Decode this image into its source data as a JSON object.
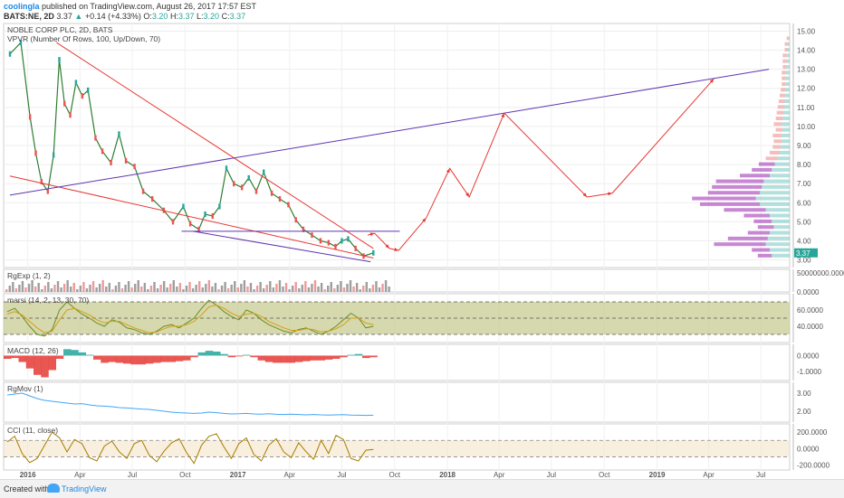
{
  "header": {
    "user": "coolingla",
    "published": "published on TradingView.com, August 26, 2017 17:57 EST",
    "symbol": "BATS:NE, 2D",
    "last": "3.37",
    "change": "+0.14 (+4.33%)",
    "open_label": "O:",
    "open": "3.20",
    "high_label": "H:",
    "high": "3.37",
    "low_label": "L:",
    "low": "3.20",
    "close_label": "C:",
    "close": "3.37"
  },
  "footer": {
    "created_with": "Created with",
    "brand": "TradingView"
  },
  "chart_data": {
    "type": "line",
    "x_ticks": [
      "2016",
      "Apr",
      "Jul",
      "Oct",
      "2017",
      "Apr",
      "Jul",
      "Oct",
      "2018",
      "Apr",
      "Jul",
      "Oct",
      "2019",
      "Apr",
      "Jul"
    ],
    "panes": [
      {
        "name": "price",
        "legend": [
          "NOBLE CORP PLC, 2D, BATS",
          "VPVR (Number Of Rows, 100, Up/Down, 70)"
        ],
        "y_ticks": [
          "15.00",
          "14.00",
          "13.00",
          "12.00",
          "11.00",
          "10.00",
          "9.00",
          "8.00",
          "7.00",
          "6.00",
          "5.00",
          "4.00",
          "3.00"
        ],
        "ylim": [
          2.6,
          15.4
        ],
        "last_value": "3.37",
        "series": [
          {
            "name": "NOBLE CORP PLC",
            "x": [
              "2015-12-01",
              "2015-12-20",
              "2016-01-05",
              "2016-01-15",
              "2016-01-25",
              "2016-02-05",
              "2016-02-15",
              "2016-02-25",
              "2016-03-05",
              "2016-03-15",
              "2016-03-25",
              "2016-04-05",
              "2016-04-15",
              "2016-04-28",
              "2016-05-10",
              "2016-05-25",
              "2016-06-08",
              "2016-06-20",
              "2016-07-05",
              "2016-07-20",
              "2016-08-05",
              "2016-08-25",
              "2016-09-10",
              "2016-09-28",
              "2016-10-10",
              "2016-10-25",
              "2016-11-05",
              "2016-11-18",
              "2016-11-30",
              "2016-12-12",
              "2016-12-25",
              "2017-01-08",
              "2017-01-20",
              "2017-02-02",
              "2017-02-15",
              "2017-03-01",
              "2017-03-15",
              "2017-03-30",
              "2017-04-12",
              "2017-04-25",
              "2017-05-10",
              "2017-05-25",
              "2017-06-08",
              "2017-06-20",
              "2017-07-01",
              "2017-07-12",
              "2017-07-25",
              "2017-08-08",
              "2017-08-25"
            ],
            "y": [
              13.8,
              14.4,
              10.5,
              8.6,
              7.1,
              6.6,
              8.5,
              13.5,
              11.2,
              10.6,
              12.3,
              11.6,
              11.9,
              9.4,
              8.7,
              8.1,
              9.6,
              8.2,
              7.9,
              6.6,
              6.2,
              5.6,
              5.0,
              5.8,
              4.9,
              4.6,
              5.4,
              5.3,
              5.8,
              7.8,
              7.0,
              6.8,
              7.3,
              6.6,
              7.6,
              6.5,
              6.2,
              5.9,
              5.1,
              4.6,
              4.3,
              4.0,
              3.9,
              3.7,
              4.0,
              4.1,
              3.6,
              3.2,
              3.37
            ]
          }
        ],
        "drawings": [
          {
            "type": "trendline",
            "color": "#e53935",
            "from": [
              "2016-02-20",
              14.4
            ],
            "to": [
              "2017-08-25",
              3.6
            ]
          },
          {
            "type": "trendline",
            "color": "#e53935",
            "from": [
              "2015-12-01",
              7.4
            ],
            "to": [
              "2017-08-25",
              3.1
            ]
          },
          {
            "type": "trendline",
            "color": "#5e35b1",
            "from": [
              "2015-12-01",
              6.4
            ],
            "to": [
              "2019-07-15",
              13.0
            ]
          },
          {
            "type": "trendline",
            "color": "#5e35b1",
            "from": [
              "2016-10-15",
              4.5
            ],
            "to": [
              "2017-08-20",
              2.9
            ]
          },
          {
            "type": "horizontal",
            "color": "#5e35b1",
            "from": [
              "2016-09-25",
              4.5
            ],
            "to": [
              "2017-10-10",
              4.5
            ]
          },
          {
            "type": "projection",
            "color": "#e53935",
            "x": [
              "2017-08-15",
              "2017-08-27",
              "2017-09-22",
              "2017-10-08",
              "2017-11-25",
              "2018-01-05",
              "2018-02-08",
              "2018-04-10",
              "2018-09-01",
              "2018-10-15",
              "2019-04-10"
            ],
            "y": [
              4.3,
              4.4,
              3.6,
              3.5,
              5.2,
              7.8,
              6.3,
              10.7,
              6.3,
              6.5,
              12.5
            ]
          }
        ],
        "vpvr": {
          "price": [
            3.2,
            3.5,
            3.8,
            4.1,
            4.4,
            4.7,
            5.0,
            5.3,
            5.6,
            5.9,
            6.2,
            6.5,
            6.8,
            7.1,
            7.4,
            7.7,
            8.0,
            8.3,
            8.6,
            8.9,
            9.2,
            9.5,
            9.8,
            10.1,
            10.4,
            10.7,
            11.0,
            11.3,
            11.6,
            11.9,
            12.2,
            12.5,
            12.8,
            13.1,
            13.4,
            13.7,
            14.0,
            14.3,
            14.6
          ],
          "up": [
            18,
            20,
            24,
            22,
            20,
            16,
            18,
            20,
            24,
            30,
            34,
            30,
            28,
            26,
            20,
            18,
            15,
            12,
            10,
            9,
            8,
            8,
            7,
            8,
            7,
            6,
            6,
            5,
            5,
            4,
            4,
            4,
            4,
            3,
            3,
            3,
            2,
            2,
            1
          ],
          "down": [
            14,
            18,
            52,
            40,
            22,
            16,
            18,
            26,
            42,
            60,
            64,
            52,
            50,
            48,
            30,
            20,
            16,
            12,
            10,
            8,
            8,
            9,
            7,
            8,
            7,
            7,
            6,
            6,
            5,
            5,
            4,
            4,
            4,
            4,
            4,
            4,
            3,
            3,
            2
          ]
        }
      },
      {
        "name": "volume",
        "legend": [
          "RgExp (1, 2)"
        ],
        "y_ticks": [
          "50000000.0000",
          "0.0000"
        ]
      },
      {
        "name": "rsi",
        "legend": [
          "marsi (14, 2, 13, 30, 70)"
        ],
        "y_ticks": [
          "60.0000",
          "40.0000"
        ],
        "ylim": [
          20,
          80
        ],
        "levels": [
          30,
          50,
          70
        ],
        "series": [
          {
            "name": "rsi",
            "color": "#6b8e23",
            "values": [
              58,
              62,
              52,
              40,
              30,
              28,
              36,
              60,
              70,
              62,
              55,
              50,
              44,
              40,
              48,
              45,
              38,
              36,
              32,
              30,
              34,
              40,
              42,
              38,
              44,
              50,
              62,
              72,
              66,
              58,
              52,
              48,
              60,
              56,
              48,
              42,
              38,
              34,
              32,
              36,
              38,
              34,
              30,
              34,
              40,
              48,
              56,
              50,
              38,
              40
            ]
          },
          {
            "name": "signal",
            "color": "#d4a017",
            "values": [
              55,
              58,
              54,
              46,
              38,
              32,
              34,
              48,
              60,
              62,
              58,
              54,
              48,
              44,
              46,
              46,
              42,
              38,
              35,
              32,
              33,
              37,
              40,
              40,
              42,
              46,
              54,
              64,
              66,
              62,
              56,
              52,
              55,
              56,
              52,
              46,
              42,
              38,
              35,
              35,
              37,
              36,
              33,
              34,
              37,
              42,
              50,
              50,
              44,
              42
            ]
          }
        ]
      },
      {
        "name": "macd",
        "legend": [
          "MACD (12, 26)"
        ],
        "y_ticks": [
          "0.0000",
          "-1.0000"
        ],
        "ylim": [
          -1.55,
          0.7
        ],
        "histogram": [
          -0.2,
          -0.15,
          -0.4,
          -0.8,
          -1.2,
          -1.35,
          -0.9,
          -0.2,
          0.4,
          0.35,
          0.2,
          0.05,
          -0.25,
          -0.45,
          -0.4,
          -0.45,
          -0.5,
          -0.55,
          -0.55,
          -0.5,
          -0.45,
          -0.4,
          -0.4,
          -0.35,
          -0.3,
          -0.1,
          0.2,
          0.3,
          0.25,
          0.1,
          -0.1,
          -0.05,
          0.05,
          -0.1,
          -0.3,
          -0.4,
          -0.45,
          -0.45,
          -0.45,
          -0.4,
          -0.35,
          -0.3,
          -0.3,
          -0.25,
          -0.2,
          -0.1,
          0.05,
          0.1,
          -0.15,
          -0.1
        ]
      },
      {
        "name": "rgmov",
        "legend": [
          "RgMov (1)"
        ],
        "y_ticks": [
          "3.00",
          "2.00"
        ],
        "ylim": [
          1.4,
          3.6
        ],
        "series": [
          {
            "name": "rgmov",
            "color": "#42a5f5",
            "values": [
              2.9,
              2.95,
              3.0,
              2.85,
              2.7,
              2.6,
              2.55,
              2.5,
              2.45,
              2.4,
              2.42,
              2.35,
              2.3,
              2.28,
              2.25,
              2.2,
              2.18,
              2.15,
              2.12,
              2.1,
              2.05,
              2.0,
              1.95,
              1.92,
              1.9,
              1.88,
              1.9,
              1.95,
              1.92,
              1.88,
              1.85,
              1.86,
              1.88,
              1.85,
              1.84,
              1.86,
              1.83,
              1.82,
              1.84,
              1.82,
              1.8,
              1.82,
              1.8,
              1.79,
              1.8,
              1.81,
              1.79,
              1.78,
              1.77,
              1.78
            ]
          }
        ]
      },
      {
        "name": "cci",
        "legend": [
          "CCI (11, close)"
        ],
        "y_ticks": [
          "200.0000",
          "0.0000",
          "-200.0000"
        ],
        "ylim": [
          -260,
          300
        ],
        "levels": [
          -100,
          100
        ],
        "series": [
          {
            "name": "cci",
            "color": "#a67c00",
            "values": [
              80,
              150,
              -60,
              -170,
              -120,
              40,
              200,
              130,
              -40,
              110,
              60,
              -110,
              -150,
              30,
              90,
              -40,
              -120,
              60,
              100,
              -80,
              -160,
              -30,
              70,
              120,
              -50,
              -180,
              40,
              150,
              180,
              20,
              -120,
              60,
              130,
              -70,
              -150,
              40,
              120,
              -40,
              -110,
              70,
              -40,
              -130,
              100,
              -60,
              160,
              110,
              -120,
              -150,
              -20,
              -10
            ]
          }
        ]
      }
    ]
  }
}
